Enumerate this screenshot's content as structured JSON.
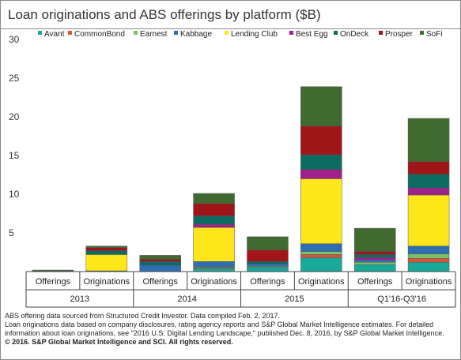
{
  "title": "Loan originations and ABS offerings by platform ($B)",
  "footer": {
    "line1": "ABS offering data sourced from Structured Credit Investor. Data compiled Feb. 2, 2017.",
    "line2": "Loan originations data based on company disclosures, rating agency reports and S&P Global Market Intelligence estimates. For detailed information about loan originations, see \"2016 U.S. Digital Lending Landscape,\" published Dec. 8, 2016, by S&P Global Market Intelligence.",
    "line3": "© 2016. S&P Global Market Intelligence and SCI. All rights reserved."
  },
  "colors": {
    "Avant": "#1aa89a",
    "CommonBond": "#e0513a",
    "Earnest": "#7bbf6a",
    "Kabbage": "#2e6fb3",
    "Lending Club": "#ffe61a",
    "Best Egg": "#a0208c",
    "OnDeck": "#0e6b62",
    "Prosper": "#a11518",
    "SoFi": "#3f6b30"
  },
  "chart_data": {
    "type": "bar",
    "stacked": true,
    "ylim": [
      0,
      30
    ],
    "yticks": [
      5,
      10,
      15,
      20,
      25,
      30
    ],
    "legend_position": "top",
    "categories": [
      "Offerings",
      "Originations",
      "Offerings",
      "Originations",
      "Offerings",
      "Originations",
      "Offerings",
      "Originations"
    ],
    "groups": [
      "2013",
      "2014",
      "2015",
      "Q1'16-Q3'16"
    ],
    "series": [
      {
        "name": "Avant",
        "values": [
          0.0,
          0.1,
          0.0,
          0.4,
          0.6,
          1.8,
          0.9,
          1.2
        ]
      },
      {
        "name": "CommonBond",
        "values": [
          0.0,
          0.0,
          0.0,
          0.1,
          0.0,
          0.4,
          0.0,
          0.5
        ]
      },
      {
        "name": "Earnest",
        "values": [
          0.0,
          0.0,
          0.0,
          0.1,
          0.1,
          0.4,
          0.3,
          0.6
        ]
      },
      {
        "name": "Kabbage",
        "values": [
          0.0,
          0.0,
          0.8,
          0.7,
          0.3,
          1.0,
          0.3,
          1.0
        ]
      },
      {
        "name": "Lending Club",
        "values": [
          0.0,
          2.1,
          0.0,
          4.4,
          0.0,
          8.4,
          0.0,
          6.6
        ]
      },
      {
        "name": "Best Egg",
        "values": [
          0.0,
          0.0,
          0.0,
          0.4,
          0.0,
          1.2,
          0.3,
          0.9
        ]
      },
      {
        "name": "OnDeck",
        "values": [
          0.1,
          0.5,
          0.5,
          1.1,
          0.3,
          1.9,
          0.4,
          1.8
        ]
      },
      {
        "name": "Prosper",
        "values": [
          0.0,
          0.4,
          0.3,
          1.6,
          1.5,
          3.7,
          0.4,
          1.6
        ]
      },
      {
        "name": "SoFi",
        "values": [
          0.1,
          0.2,
          0.5,
          1.3,
          1.7,
          5.1,
          3.0,
          5.6
        ]
      }
    ]
  }
}
